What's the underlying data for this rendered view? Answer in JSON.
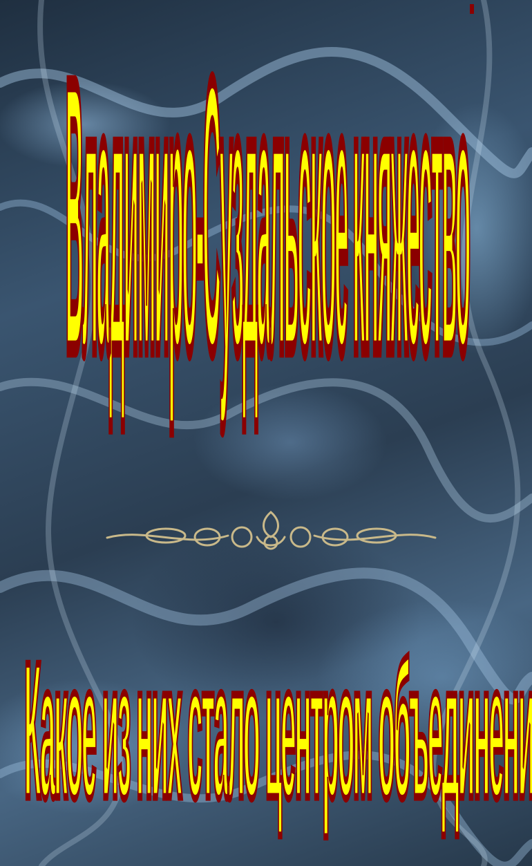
{
  "slide": {
    "statement": "Владимиро-Суздальское княжество",
    "question": "Какое из них стало центром объединения земель?"
  },
  "colors": {
    "text_fill": "#ffff00",
    "text_outline": "#8b0000",
    "background": "#2f4356",
    "ornament": "#c9b98a"
  },
  "icons": {
    "divider": "ornamental-scroll-divider"
  }
}
